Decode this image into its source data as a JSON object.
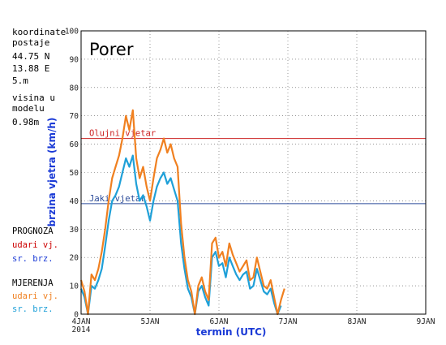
{
  "station": {
    "coord_title": "koordinate",
    "coord_title2": "postaje",
    "lat": "44.75 N",
    "lon": "13.88 E",
    "elevation": "5.m",
    "height_title": "visina u",
    "height_title2": "modelu",
    "model_height": "0.98m"
  },
  "legend": {
    "forecast_title": "PROGNOZA",
    "forecast_gust": "udari vj.",
    "forecast_mean": "sr. brz.",
    "obs_title": "MJERENJA",
    "obs_gust": "udari vj.",
    "obs_mean": "sr. brz."
  },
  "colors": {
    "forecast_gust": "#cc0000",
    "forecast_mean": "#1a3ad6",
    "obs_gust": "#f08020",
    "obs_mean": "#1fa0d8",
    "axis_title": "#1a3ad6",
    "threshold_storm": "#cc2222",
    "threshold_strong": "#2b4b9a"
  },
  "chart_data": {
    "type": "line",
    "title": "Porer",
    "xlabel": "termin (UTC)",
    "ylabel": "brzina vjetra (km/h)",
    "ylim": [
      0,
      100
    ],
    "yticks": [
      0,
      10,
      20,
      30,
      40,
      50,
      60,
      70,
      80,
      90,
      100
    ],
    "xlim_days": [
      4,
      9
    ],
    "xticks": [
      {
        "day": 4,
        "label": "4JAN",
        "sub": "2014"
      },
      {
        "day": 5,
        "label": "5JAN",
        "sub": ""
      },
      {
        "day": 6,
        "label": "6JAN",
        "sub": ""
      },
      {
        "day": 7,
        "label": "7JAN",
        "sub": ""
      },
      {
        "day": 8,
        "label": "8JAN",
        "sub": ""
      },
      {
        "day": 9,
        "label": "9JAN",
        "sub": ""
      }
    ],
    "grid": true,
    "thresholds": [
      {
        "label": "Olujni vjetar",
        "value": 62
      },
      {
        "label": "Jaki vjetar",
        "value": 39
      }
    ],
    "series": [
      {
        "name": "udari vj.",
        "x": [
          4.0,
          4.05,
          4.1,
          4.15,
          4.2,
          4.25,
          4.3,
          4.35,
          4.4,
          4.45,
          4.5,
          4.55,
          4.6,
          4.65,
          4.7,
          4.75,
          4.8,
          4.85,
          4.9,
          4.95,
          5.0,
          5.05,
          5.1,
          5.15,
          5.2,
          5.25,
          5.3,
          5.35,
          5.4,
          5.45,
          5.5,
          5.55,
          5.6,
          5.65,
          5.7,
          5.75,
          5.8,
          5.85,
          5.9,
          5.95,
          6.0,
          6.05,
          6.1,
          6.15,
          6.2,
          6.25,
          6.3,
          6.35,
          6.4,
          6.45,
          6.5,
          6.55,
          6.6,
          6.65,
          6.7,
          6.75,
          6.8,
          6.85,
          6.9,
          6.95
        ],
        "values": [
          12,
          8,
          0,
          14,
          12,
          16,
          22,
          30,
          40,
          48,
          52,
          56,
          62,
          70,
          65,
          72,
          55,
          48,
          52,
          45,
          40,
          48,
          55,
          58,
          62,
          57,
          60,
          55,
          52,
          32,
          20,
          12,
          8,
          0,
          10,
          13,
          8,
          5,
          25,
          27,
          20,
          22,
          17,
          25,
          21,
          18,
          15,
          17,
          19,
          12,
          13,
          20,
          15,
          10,
          9,
          12,
          6,
          0,
          5,
          9
        ]
      },
      {
        "name": "sr. brz.",
        "x": [
          4.0,
          4.05,
          4.1,
          4.15,
          4.2,
          4.25,
          4.3,
          4.35,
          4.4,
          4.45,
          4.5,
          4.55,
          4.6,
          4.65,
          4.7,
          4.75,
          4.8,
          4.85,
          4.9,
          4.95,
          5.0,
          5.05,
          5.1,
          5.15,
          5.2,
          5.25,
          5.3,
          5.35,
          5.4,
          5.45,
          5.5,
          5.55,
          5.6,
          5.65,
          5.7,
          5.75,
          5.8,
          5.85,
          5.9,
          5.95,
          6.0,
          6.05,
          6.1,
          6.15,
          6.2,
          6.25,
          6.3,
          6.35,
          6.4,
          6.45,
          6.5,
          6.55,
          6.6,
          6.65,
          6.7,
          6.75,
          6.8,
          6.85,
          6.9
        ],
        "values": [
          9,
          6,
          0,
          10,
          9,
          12,
          16,
          24,
          33,
          40,
          42,
          45,
          50,
          55,
          52,
          56,
          46,
          40,
          42,
          38,
          33,
          40,
          45,
          48,
          50,
          46,
          48,
          44,
          40,
          25,
          16,
          9,
          6,
          0,
          8,
          10,
          6,
          3,
          20,
          22,
          17,
          18,
          13,
          20,
          17,
          14,
          12,
          14,
          15,
          9,
          10,
          16,
          12,
          8,
          7,
          9,
          4,
          0,
          3
        ]
      }
    ]
  }
}
